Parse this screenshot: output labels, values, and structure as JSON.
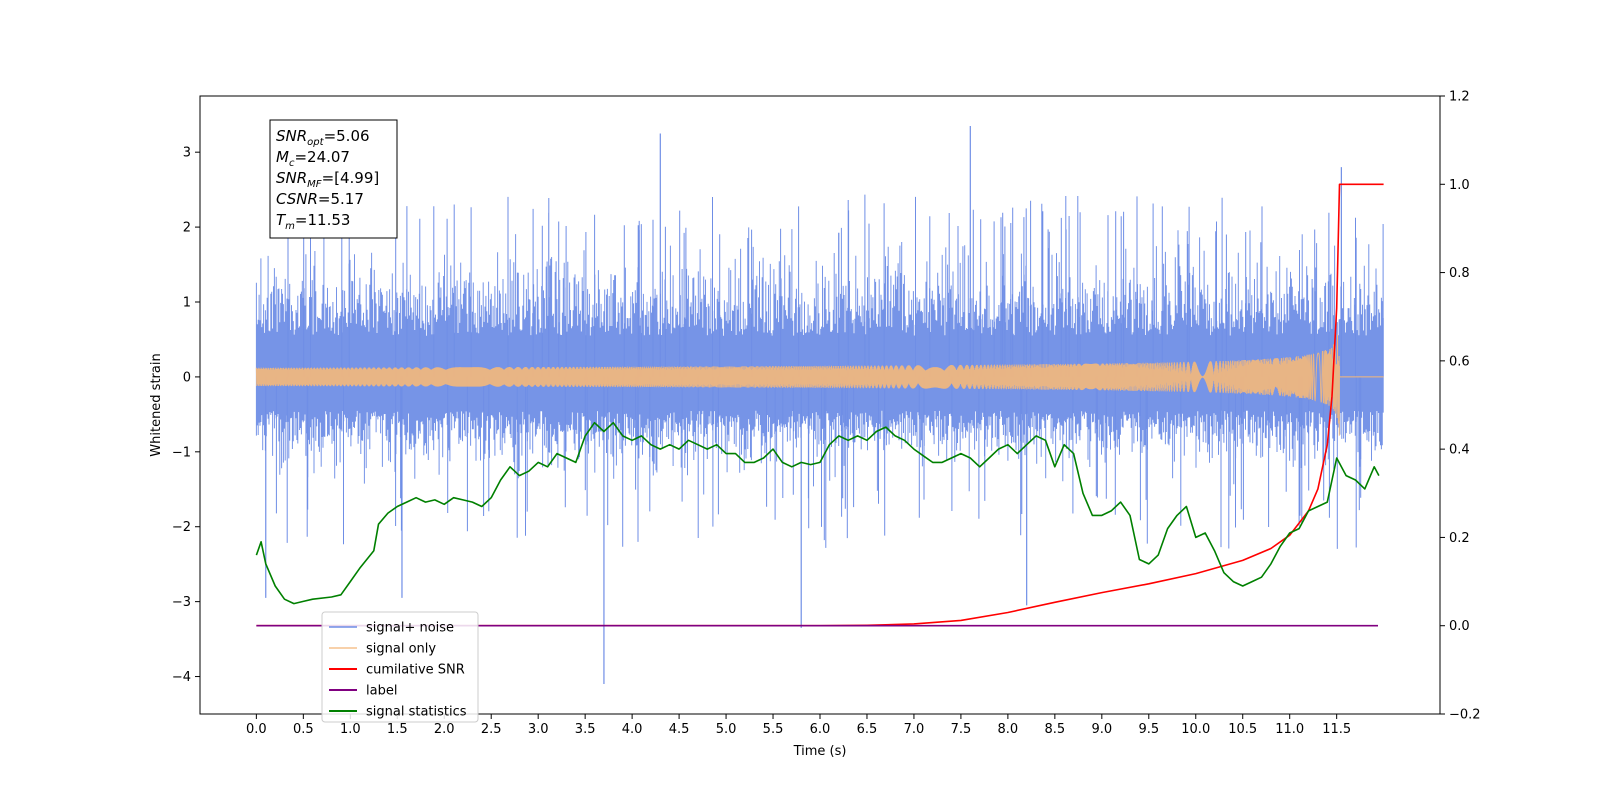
{
  "chart_data": {
    "type": "line",
    "xlabel": "Time (s)",
    "ylabel": "Whitened strain",
    "xlim": [
      -0.6,
      12.6
    ],
    "ylim": [
      -4.5,
      3.75
    ],
    "y2lim": [
      -0.2,
      1.2
    ],
    "xticks": [
      0.0,
      0.5,
      1.0,
      1.5,
      2.0,
      2.5,
      3.0,
      3.5,
      4.0,
      4.5,
      5.0,
      5.5,
      6.0,
      6.5,
      7.0,
      7.5,
      8.0,
      8.5,
      9.0,
      9.5,
      10.0,
      10.5,
      11.0,
      11.5
    ],
    "xtick_labels": [
      "0.0",
      "0.5",
      "1.0",
      "1.5",
      "2.0",
      "2.5",
      "3.0",
      "3.5",
      "4.0",
      "4.5",
      "5.0",
      "5.5",
      "6.0",
      "6.5",
      "7.0",
      "7.5",
      "8.0",
      "8.5",
      "9.0",
      "9.5",
      "10.0",
      "10.5",
      "11.0",
      "11.5"
    ],
    "yticks": [
      -4,
      -3,
      -2,
      -1,
      0,
      1,
      2,
      3
    ],
    "ytick_labels": [
      "−4",
      "−3",
      "−2",
      "−1",
      "0",
      "1",
      "2",
      "3"
    ],
    "y2ticks": [
      -0.2,
      0.0,
      0.2,
      0.4,
      0.6,
      0.8,
      1.0,
      1.2
    ],
    "y2tick_labels": [
      "−0.2",
      "0.0",
      "0.2",
      "0.4",
      "0.6",
      "0.8",
      "1.0",
      "1.2"
    ],
    "grid": false,
    "legend_position": "bottom-left",
    "info_box": [
      {
        "main": "SNR",
        "sub": "opt",
        "rest": "=5.06"
      },
      {
        "main": "M",
        "sub": "c",
        "rest": "=24.07"
      },
      {
        "main": "SNR",
        "sub": "MF",
        "rest": "=[4.99]"
      },
      {
        "main": "CSNR",
        "sub": "",
        "rest": "=5.17"
      },
      {
        "main": "T",
        "sub": "m",
        "rest": "=11.53"
      }
    ],
    "series": [
      {
        "name": "signal+ noise",
        "color": "#6f8ee6",
        "axis": "left",
        "kind": "noise",
        "x_range": [
          0.0,
          12.0
        ],
        "approx_envelope": {
          "typical_max": 2.2,
          "typical_min": -1.5
        },
        "spikes": [
          [
            3.7,
            -4.1
          ],
          [
            5.8,
            -3.35
          ],
          [
            4.3,
            3.25
          ],
          [
            7.6,
            3.35
          ],
          [
            11.55,
            2.8
          ],
          [
            0.1,
            -2.95
          ],
          [
            1.55,
            -2.95
          ],
          [
            8.2,
            -3.05
          ]
        ]
      },
      {
        "name": "signal only",
        "color": "#f5b87a",
        "axis": "left",
        "kind": "chirp",
        "x_range": [
          0.0,
          11.53
        ],
        "merger_time": 11.53,
        "peak_amplitude": 0.95
      },
      {
        "name": "cumilative SNR",
        "color": "#ff0000",
        "axis": "right",
        "x": [
          0.0,
          5.0,
          6.0,
          6.5,
          7.0,
          7.5,
          8.0,
          8.5,
          9.0,
          9.5,
          10.0,
          10.5,
          10.8,
          11.0,
          11.2,
          11.3,
          11.4,
          11.45,
          11.5,
          11.53,
          11.6,
          12.0
        ],
        "y": [
          0.0,
          0.0,
          0.0,
          0.001,
          0.004,
          0.012,
          0.03,
          0.053,
          0.075,
          0.095,
          0.118,
          0.148,
          0.175,
          0.205,
          0.26,
          0.31,
          0.41,
          0.52,
          0.72,
          1.0,
          1.0,
          1.0
        ]
      },
      {
        "name": "label",
        "color": "#800080",
        "axis": "right",
        "x": [
          0.0,
          11.53,
          11.94
        ],
        "y": [
          0.0,
          0.0,
          0.0
        ]
      },
      {
        "name": "signal statistics",
        "color": "#008000",
        "axis": "right",
        "x": [
          0.0,
          0.05,
          0.1,
          0.2,
          0.3,
          0.4,
          0.5,
          0.6,
          0.8,
          0.9,
          1.0,
          1.1,
          1.25,
          1.3,
          1.4,
          1.5,
          1.6,
          1.7,
          1.8,
          1.9,
          2.0,
          2.1,
          2.2,
          2.3,
          2.4,
          2.5,
          2.6,
          2.7,
          2.8,
          2.9,
          3.0,
          3.1,
          3.2,
          3.3,
          3.4,
          3.5,
          3.6,
          3.7,
          3.8,
          3.9,
          4.0,
          4.1,
          4.2,
          4.3,
          4.4,
          4.5,
          4.6,
          4.7,
          4.8,
          4.9,
          5.0,
          5.1,
          5.2,
          5.3,
          5.4,
          5.5,
          5.6,
          5.7,
          5.8,
          5.9,
          6.0,
          6.1,
          6.2,
          6.3,
          6.4,
          6.5,
          6.6,
          6.7,
          6.8,
          6.9,
          7.0,
          7.1,
          7.2,
          7.3,
          7.4,
          7.5,
          7.6,
          7.7,
          7.8,
          7.9,
          8.0,
          8.1,
          8.2,
          8.3,
          8.4,
          8.5,
          8.6,
          8.7,
          8.8,
          8.9,
          9.0,
          9.1,
          9.2,
          9.3,
          9.4,
          9.5,
          9.6,
          9.7,
          9.8,
          9.9,
          10.0,
          10.1,
          10.2,
          10.3,
          10.4,
          10.5,
          10.6,
          10.7,
          10.8,
          10.9,
          11.0,
          11.1,
          11.2,
          11.3,
          11.4,
          11.5,
          11.6,
          11.7,
          11.8,
          11.9,
          11.95
        ],
        "y": [
          0.16,
          0.19,
          0.14,
          0.09,
          0.06,
          0.05,
          0.055,
          0.06,
          0.065,
          0.07,
          0.1,
          0.13,
          0.17,
          0.23,
          0.255,
          0.27,
          0.28,
          0.29,
          0.28,
          0.285,
          0.275,
          0.29,
          0.285,
          0.28,
          0.27,
          0.29,
          0.33,
          0.36,
          0.34,
          0.35,
          0.37,
          0.36,
          0.39,
          0.38,
          0.37,
          0.43,
          0.46,
          0.44,
          0.46,
          0.43,
          0.42,
          0.43,
          0.41,
          0.4,
          0.41,
          0.4,
          0.42,
          0.41,
          0.4,
          0.41,
          0.39,
          0.39,
          0.37,
          0.37,
          0.38,
          0.4,
          0.37,
          0.36,
          0.37,
          0.365,
          0.37,
          0.41,
          0.43,
          0.42,
          0.43,
          0.42,
          0.44,
          0.45,
          0.43,
          0.42,
          0.4,
          0.385,
          0.37,
          0.37,
          0.38,
          0.39,
          0.38,
          0.36,
          0.38,
          0.4,
          0.41,
          0.39,
          0.41,
          0.43,
          0.42,
          0.36,
          0.41,
          0.39,
          0.3,
          0.25,
          0.25,
          0.26,
          0.28,
          0.25,
          0.15,
          0.14,
          0.16,
          0.22,
          0.25,
          0.27,
          0.2,
          0.21,
          0.17,
          0.12,
          0.1,
          0.09,
          0.1,
          0.11,
          0.14,
          0.18,
          0.21,
          0.22,
          0.26,
          0.27,
          0.28,
          0.38,
          0.34,
          0.33,
          0.31,
          0.36,
          0.34
        ]
      }
    ]
  }
}
